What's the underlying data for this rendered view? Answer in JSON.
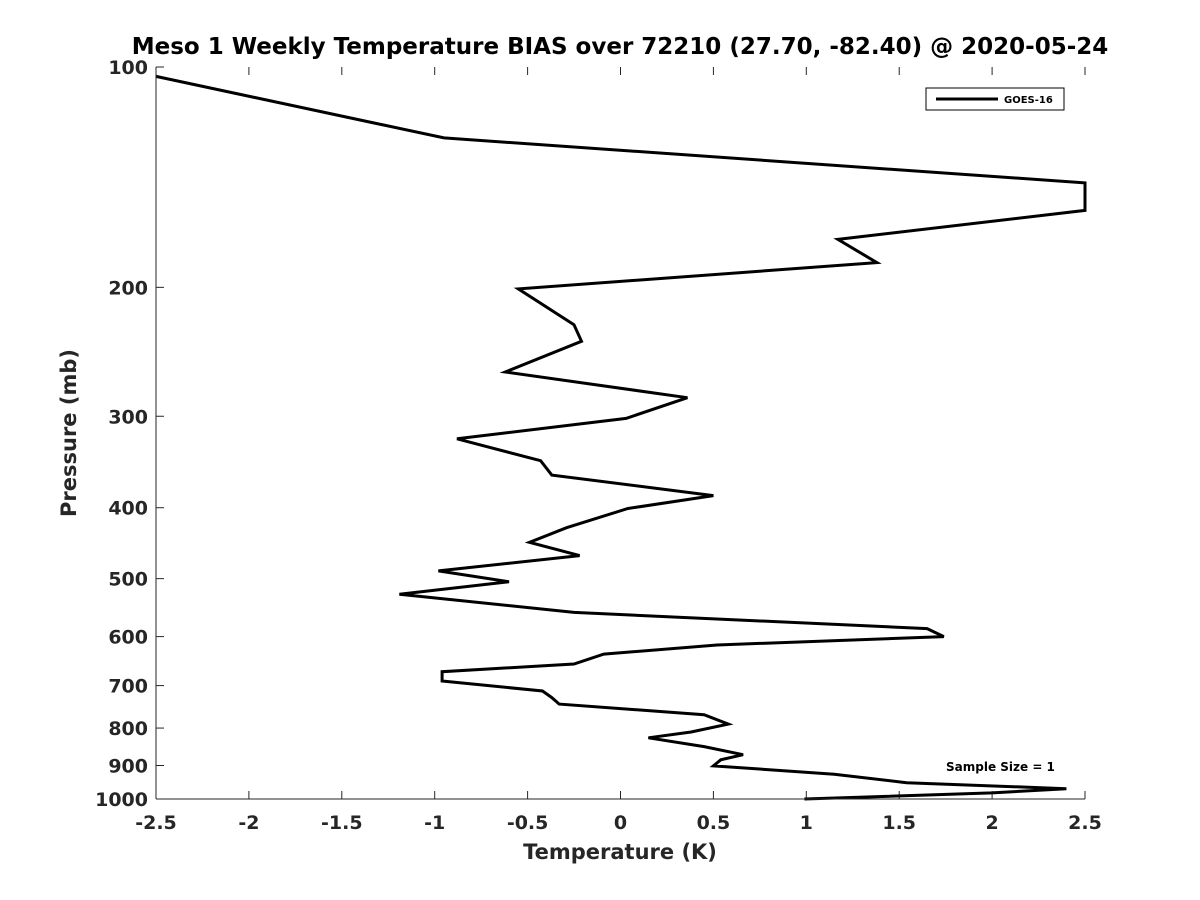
{
  "chart_data": {
    "type": "line",
    "title": "Meso 1 Weekly Temperature BIAS over 72210 (27.70, -82.40) @ 2020-05-24",
    "xlabel": "Temperature (K)",
    "ylabel": "Pressure (mb)",
    "xlim": [
      -2.5,
      2.5
    ],
    "ylim": [
      100,
      1000
    ],
    "yscale": "log",
    "ydirection": "reverse",
    "xticks": [
      -2.5,
      -2,
      -1.5,
      -1,
      -0.5,
      0,
      0.5,
      1,
      1.5,
      2,
      2.5
    ],
    "xtick_labels": [
      "-2.5",
      "-2",
      "-1.5",
      "-1",
      "-0.5",
      "0",
      "0.5",
      "1",
      "1.5",
      "2",
      "2.5"
    ],
    "yticks": [
      100,
      200,
      300,
      400,
      500,
      600,
      700,
      800,
      900,
      1000
    ],
    "ytick_labels": [
      "100",
      "200",
      "300",
      "400",
      "500",
      "600",
      "700",
      "800",
      "900",
      "1000"
    ],
    "grid": false,
    "legend": {
      "location": "top-right",
      "entries": [
        "GOES-16"
      ]
    },
    "annotation": "Sample Size = 1",
    "series": [
      {
        "name": "GOES-16",
        "color": "#000000",
        "points": [
          [
            -2.5,
            103
          ],
          [
            -0.95,
            125
          ],
          [
            2.5,
            144
          ],
          [
            2.5,
            157
          ],
          [
            1.17,
            172
          ],
          [
            1.38,
            185
          ],
          [
            -0.55,
            201
          ],
          [
            -0.25,
            225
          ],
          [
            -0.21,
            237
          ],
          [
            -0.62,
            261
          ],
          [
            0.36,
            283
          ],
          [
            0.03,
            302
          ],
          [
            -0.88,
            322
          ],
          [
            -0.43,
            345
          ],
          [
            -0.37,
            361
          ],
          [
            0.5,
            385
          ],
          [
            0.04,
            401
          ],
          [
            -0.29,
            426
          ],
          [
            -0.49,
            446
          ],
          [
            -0.22,
            465
          ],
          [
            -0.98,
            488
          ],
          [
            -0.6,
            505
          ],
          [
            -1.19,
            525
          ],
          [
            -0.25,
            556
          ],
          [
            1.65,
            585
          ],
          [
            1.74,
            600
          ],
          [
            0.52,
            616
          ],
          [
            -0.09,
            634
          ],
          [
            -0.25,
            654
          ],
          [
            -0.96,
            670
          ],
          [
            -0.96,
            690
          ],
          [
            -0.42,
            712
          ],
          [
            -0.37,
            727
          ],
          [
            -0.33,
            742
          ],
          [
            0.45,
            767
          ],
          [
            0.58,
            790
          ],
          [
            0.38,
            810
          ],
          [
            0.15,
            825
          ],
          [
            0.45,
            848
          ],
          [
            0.66,
            870
          ],
          [
            0.54,
            884
          ],
          [
            0.5,
            901
          ],
          [
            1.15,
            925
          ],
          [
            1.54,
            950
          ],
          [
            2.4,
            968
          ],
          [
            2.0,
            981
          ],
          [
            0.99,
            1000
          ]
        ]
      }
    ]
  }
}
